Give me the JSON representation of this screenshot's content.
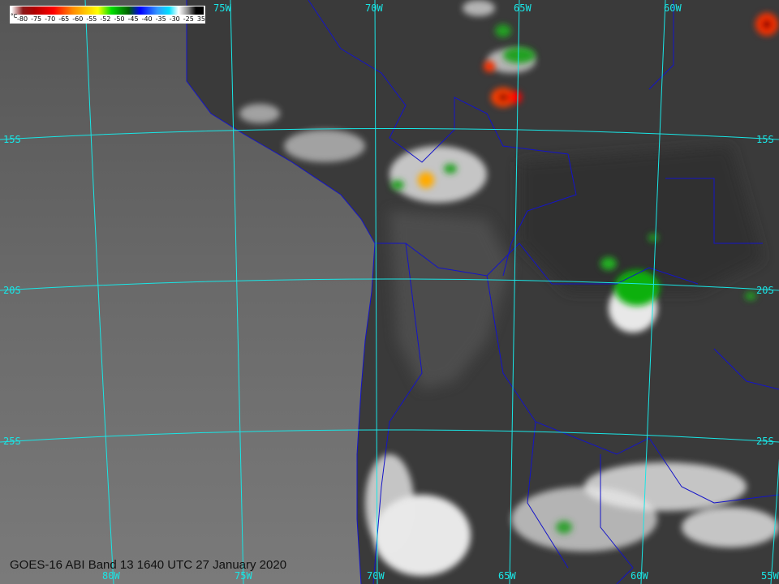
{
  "caption": "GOES-16 ABI Band 13 1640 UTC 27 January 2020",
  "colorbar": {
    "unit": "°C",
    "ticks": [
      "-80",
      "-75",
      "-70",
      "-65",
      "-60",
      "-55",
      "-52",
      "-50",
      "-45",
      "-40",
      "-35",
      "-30",
      "-25",
      "35"
    ]
  },
  "grid": {
    "top_labels": [
      "75W",
      "70W",
      "65W",
      "60W"
    ],
    "bottom_labels": [
      "80W",
      "75W",
      "70W",
      "65W",
      "60W",
      "55W"
    ],
    "left_labels": [
      "15S",
      "20S",
      "25S"
    ],
    "right_labels": [
      "15S",
      "20S",
      "25S"
    ]
  },
  "colors": {
    "grid": "#19e6e6",
    "borders": "#1414c8",
    "ocean": "#6e6e6e",
    "land": "#3c3c3c",
    "cloud": "#f0f0f0"
  }
}
